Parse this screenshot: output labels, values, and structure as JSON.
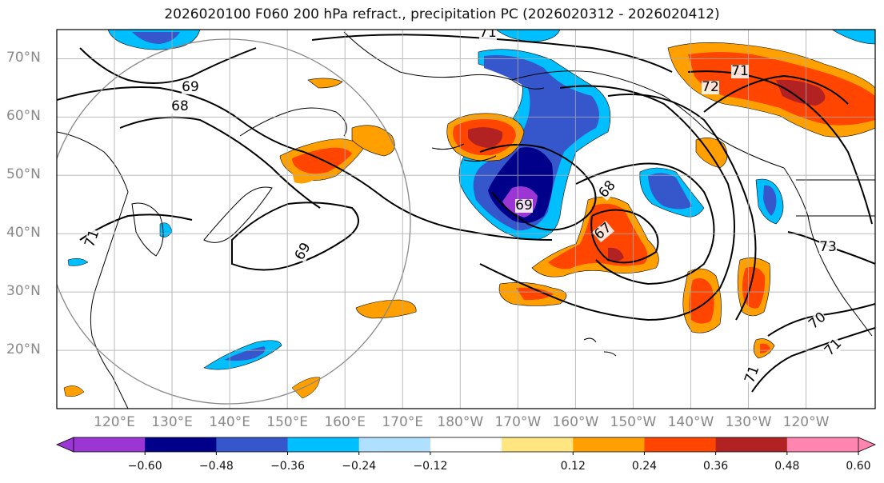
{
  "title": "2026020100 F060 200 hPa refract., precipitation PC (2026020312 - 2026020412)",
  "lat_ticks": [
    "70°N",
    "60°N",
    "50°N",
    "40°N",
    "30°N",
    "20°N"
  ],
  "lat_values": [
    70,
    60,
    50,
    40,
    30,
    20
  ],
  "lon_ticks": [
    "120°E",
    "130°E",
    "140°E",
    "150°E",
    "160°E",
    "170°E",
    "180°W",
    "170°W",
    "160°W",
    "150°W",
    "140°W",
    "130°W",
    "120°W"
  ],
  "lon_values": [
    120,
    130,
    140,
    150,
    160,
    170,
    180,
    190,
    200,
    210,
    220,
    230,
    240
  ],
  "contour_labels": [
    "71",
    "69",
    "68",
    "71",
    "69",
    "72",
    "71",
    "69",
    "68",
    "67",
    "73",
    "70",
    "71",
    "71"
  ],
  "colorbar": {
    "ticks": [
      "−0.60",
      "−0.48",
      "−0.36",
      "−0.24",
      "−0.12",
      "0.12",
      "0.24",
      "0.36",
      "0.48",
      "0.60"
    ],
    "colors": [
      "#9b36d4",
      "#00008b",
      "#3656cc",
      "#00bfff",
      "#b0e0ff",
      "#ffffff",
      "#ffe680",
      "#ffa000",
      "#ff4500",
      "#b22222",
      "#ff85b0"
    ]
  },
  "shading_colors": {
    "purple": "#9b36d4",
    "navy": "#00008b",
    "blue": "#3656cc",
    "cyan": "#00bfff",
    "lightblue": "#b0e0ff",
    "yellow": "#ffe680",
    "orange": "#ffa000",
    "redorange": "#ff4500",
    "darkred": "#b22222"
  }
}
